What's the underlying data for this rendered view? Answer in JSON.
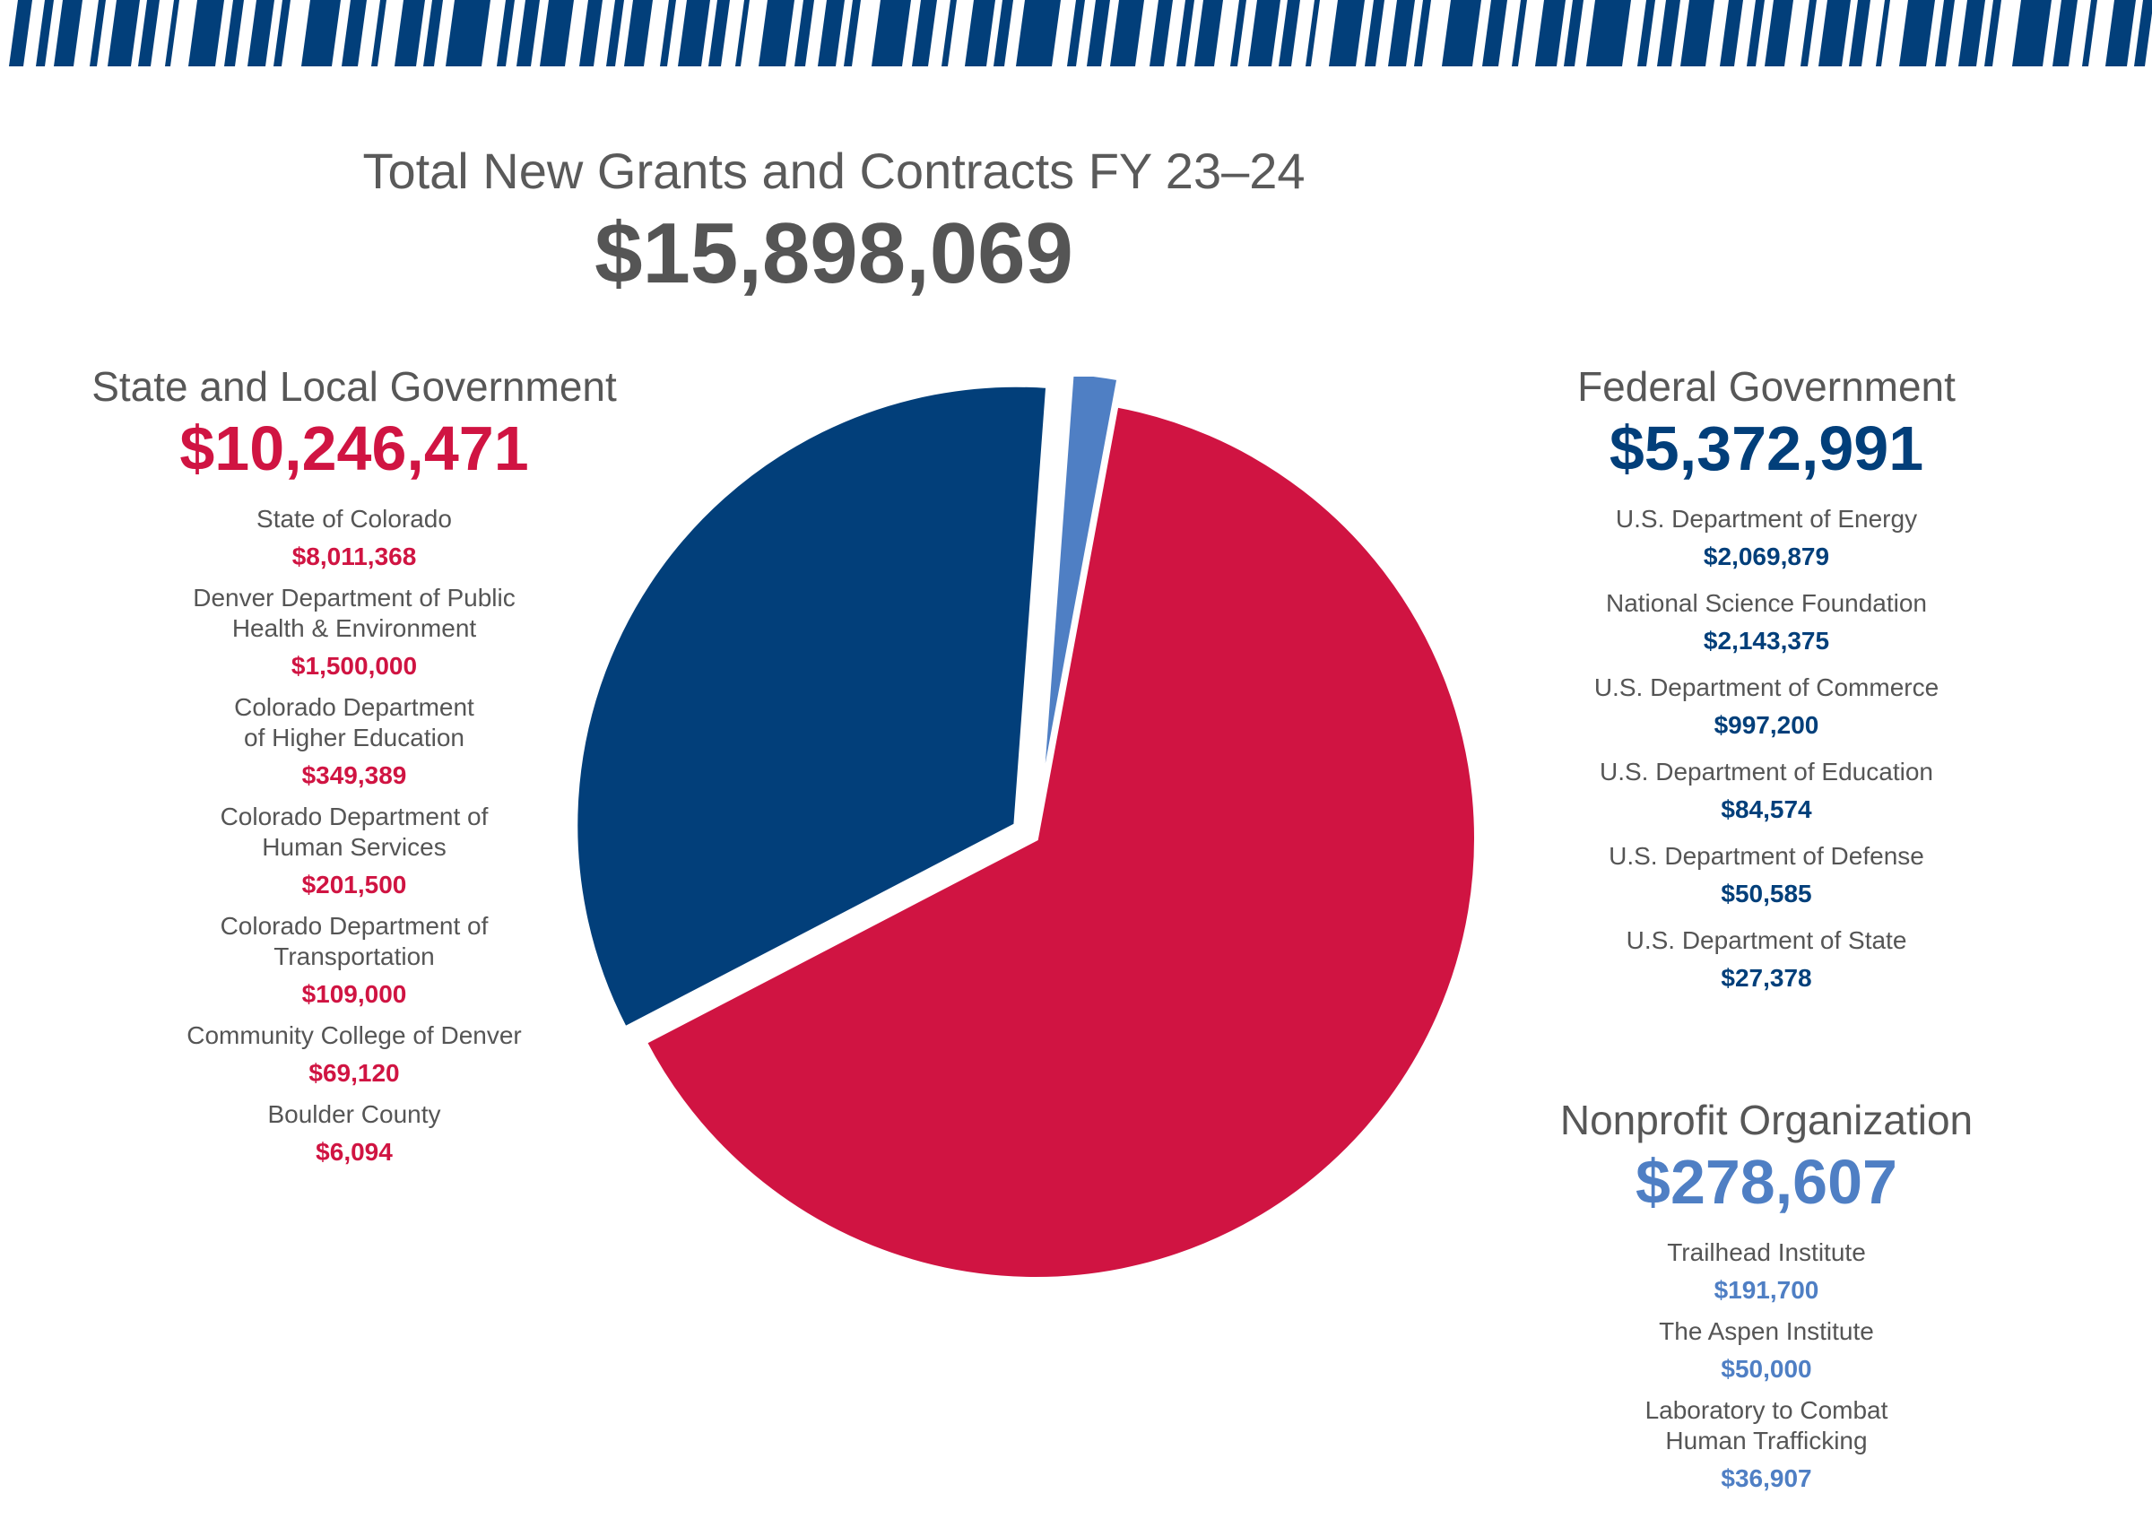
{
  "header": {
    "title": "Total New Grants and Contracts FY 23–24",
    "total": "$15,898,069"
  },
  "colors": {
    "stripe": "#023f7a",
    "state": "#d01442",
    "federal": "#023f7a",
    "nonprofit": "#4f7fc4",
    "text": "#555555"
  },
  "groups": {
    "state": {
      "title": "State and Local Government",
      "amount": "$10,246,471",
      "items": [
        {
          "name": "State of Colorado",
          "value": "$8,011,368"
        },
        {
          "name": "Denver Department of Public\nHealth & Environment",
          "value": "$1,500,000"
        },
        {
          "name": "Colorado Department\nof Higher Education",
          "value": "$349,389"
        },
        {
          "name": "Colorado Department of\nHuman Services",
          "value": "$201,500"
        },
        {
          "name": "Colorado Department of\nTransportation",
          "value": "$109,000"
        },
        {
          "name": "Community College of Denver",
          "value": "$69,120"
        },
        {
          "name": "Boulder County",
          "value": "$6,094"
        }
      ]
    },
    "federal": {
      "title": "Federal Government",
      "amount": "$5,372,991",
      "items": [
        {
          "name": "U.S. Department of Energy",
          "value": "$2,069,879"
        },
        {
          "name": "National Science Foundation",
          "value": "$2,143,375"
        },
        {
          "name": "U.S. Department of Commerce",
          "value": "$997,200"
        },
        {
          "name": "U.S. Department of Education",
          "value": "$84,574"
        },
        {
          "name": "U.S. Department of Defense",
          "value": "$50,585"
        },
        {
          "name": "U.S. Department of State",
          "value": "$27,378"
        }
      ]
    },
    "nonprofit": {
      "title": "Nonprofit Organization",
      "amount": "$278,607",
      "items": [
        {
          "name": "Trailhead Institute",
          "value": "$191,700"
        },
        {
          "name": "The Aspen Institute",
          "value": "$50,000"
        },
        {
          "name": "Laboratory to Combat\nHuman Trafficking",
          "value": "$36,907"
        }
      ]
    }
  },
  "chart_data": {
    "type": "pie",
    "categories": [
      "State and Local Government",
      "Federal Government",
      "Nonprofit Organization"
    ],
    "values": [
      10246471,
      5372991,
      278607
    ],
    "colors": [
      "#d01442",
      "#023f7a",
      "#4f7fc4"
    ],
    "exploded": true
  }
}
